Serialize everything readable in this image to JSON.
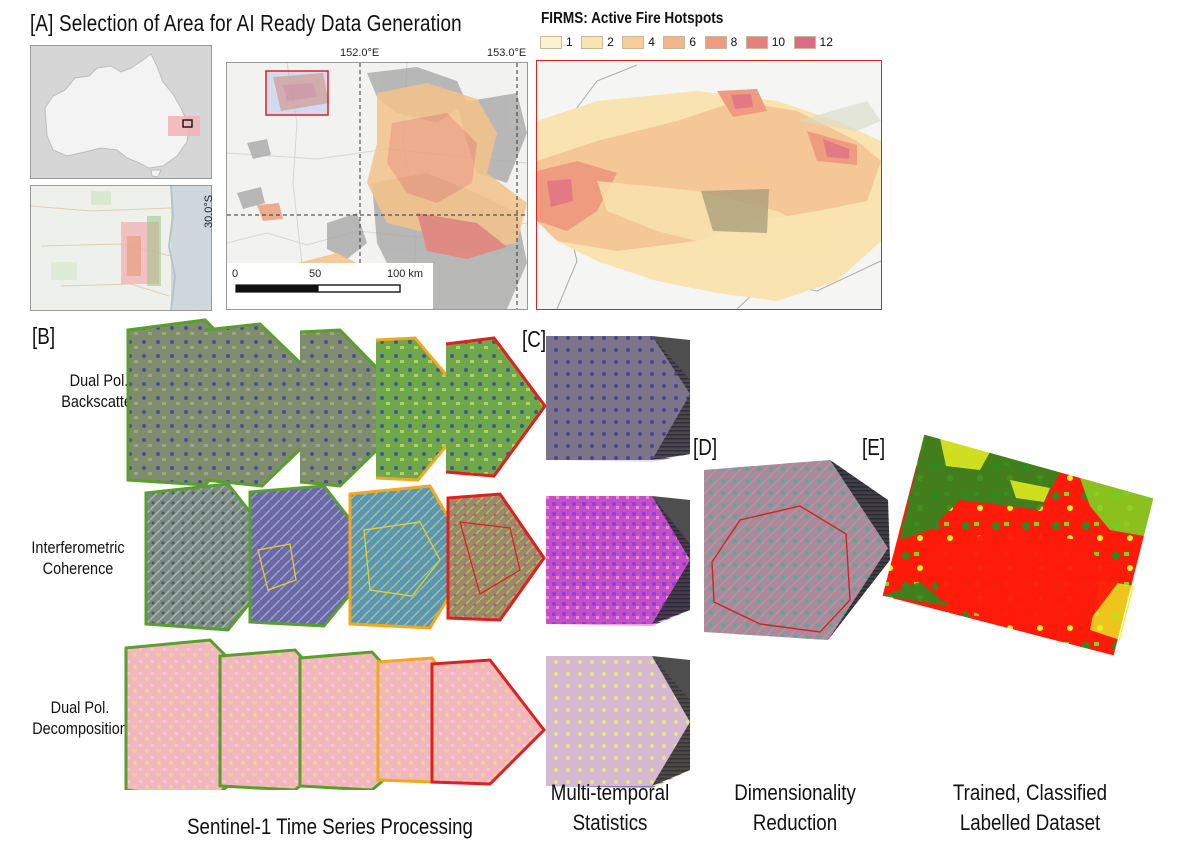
{
  "title": "[A] Selection of Area for AI Ready Data Generation",
  "legend": {
    "title": "FIRMS: Active Fire Hotspots",
    "items": [
      {
        "label": "1",
        "color": "#fbf3cf"
      },
      {
        "label": "2",
        "color": "#f9e4b2"
      },
      {
        "label": "4",
        "color": "#f6cf98"
      },
      {
        "label": "6",
        "color": "#f3b589"
      },
      {
        "label": "8",
        "color": "#ee9b80"
      },
      {
        "label": "10",
        "color": "#e7807d"
      },
      {
        "label": "12",
        "color": "#dc6b86"
      }
    ]
  },
  "map": {
    "lon_ticks": [
      "152.0°E",
      "153.0°E"
    ],
    "lat_tick": "30.0°S",
    "scale_labels": [
      "0",
      "50",
      "100 km"
    ]
  },
  "sections": {
    "b": "[B]",
    "c": "[C]",
    "d": "[D]",
    "e": "[E]"
  },
  "rows": [
    {
      "line1": "Dual Pol.",
      "line2": "Backscatter"
    },
    {
      "line1": "Interferometric",
      "line2": "Coherence"
    },
    {
      "line1": "Dual Pol.",
      "line2": "Decomposition"
    }
  ],
  "bottom": {
    "processing": "Sentinel-1 Time Series Processing",
    "stats_line1": "Multi-temporal",
    "stats_line2": "Statistics",
    "dim_line1": "Dimensionality",
    "dim_line2": "Reduction",
    "trained_line1": "Trained, Classified",
    "trained_line2": "Labelled Dataset"
  },
  "colors": {
    "frame_green": "#5a9e2e",
    "frame_orange": "#f2a81d",
    "frame_red": "#e0201e",
    "class_red": "#ff1a0a",
    "class_green": "#2e8a1e",
    "class_yellow": "#e8f020"
  }
}
